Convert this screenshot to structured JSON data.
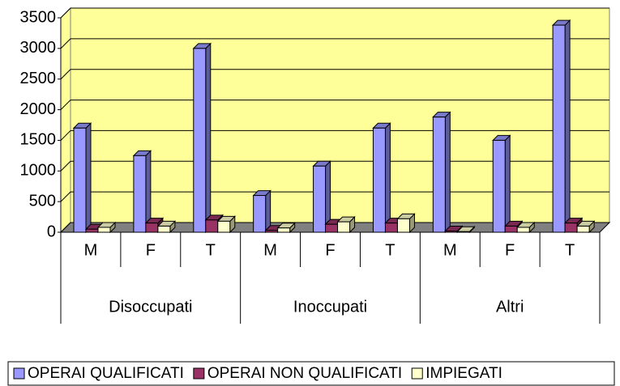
{
  "chart_data": {
    "type": "bar3d",
    "categories": [
      "M",
      "F",
      "T",
      "M",
      "F",
      "T",
      "M",
      "F",
      "T"
    ],
    "category_groups": [
      "Disoccupati",
      "Inoccupati",
      "Altri"
    ],
    "series": [
      {
        "name": "OPERAI QUALIFICATI",
        "color": "#9999ff",
        "values": [
          1700,
          1250,
          3000,
          600,
          1080,
          1700,
          1880,
          1500,
          3380
        ]
      },
      {
        "name": "OPERAI NON QUALIFICATI",
        "color": "#993366",
        "values": [
          50,
          150,
          200,
          30,
          130,
          150,
          20,
          100,
          150
        ]
      },
      {
        "name": "IMPIEGATI",
        "color": "#ffffcc",
        "values": [
          80,
          100,
          180,
          70,
          170,
          220,
          10,
          80,
          100
        ]
      }
    ],
    "ylim": [
      0,
      3500
    ],
    "yticks": [
      0,
      500,
      1000,
      1500,
      2000,
      2500,
      3000,
      3500
    ],
    "grid": true,
    "wall_color": "#ffff99",
    "floor_color": "#808080",
    "legend": "bottom"
  }
}
